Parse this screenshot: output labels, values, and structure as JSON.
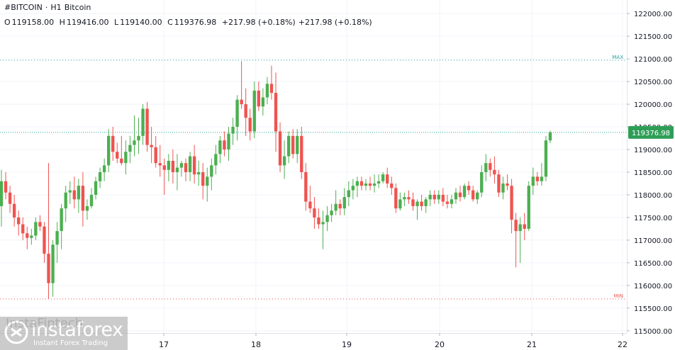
{
  "header": {
    "symbol": "#BITCOIN",
    "separator": "·",
    "interval": "H1",
    "name": "Bitcoin",
    "ohlc": {
      "o_label": "O",
      "o": "119158.00",
      "h_label": "H",
      "h": "119416.00",
      "l_label": "L",
      "l": "119140.00",
      "c_label": "C",
      "c": "119376.98",
      "change": "+217.98 (+0.18%)",
      "change2": "+217.98 (+0.18%)"
    }
  },
  "watermark": {
    "faint_text": "InstaFintech",
    "brand": "instaforex",
    "tagline": "Instant Forex Trading"
  },
  "colors": {
    "up": "#26a69a",
    "up_body": "#4caf50",
    "down": "#ef5350",
    "grid": "#f0f3fa",
    "axis_text": "#131722",
    "max_line": "#26a69a",
    "min_line": "#ef5350",
    "last_price_bg": "#2e9e57"
  },
  "chart_data": {
    "type": "candlestick",
    "y_axis": {
      "ticks": [
        "122000.00",
        "121500.00",
        "121000.00",
        "120500.00",
        "120000.00",
        "119500.00",
        "119000.00",
        "118500.00",
        "118000.00",
        "117500.00",
        "117000.00",
        "116500.00",
        "116000.00",
        "115500.00",
        "115000.00"
      ],
      "range": [
        114950,
        122300
      ]
    },
    "x_axis": {
      "ticks": [
        "17",
        "18",
        "19",
        "20",
        "21",
        "22"
      ]
    },
    "markers": {
      "max_label": "MAX",
      "max_value": 120970,
      "min_label": "MIN",
      "min_value": 115700
    },
    "last_price": {
      "label": "119376.98",
      "value": 119376.98
    },
    "candles": [
      [
        117750,
        118550,
        117300,
        118300
      ],
      [
        118300,
        118500,
        117900,
        118050
      ],
      [
        118050,
        118200,
        117600,
        117800
      ],
      [
        117800,
        118000,
        117300,
        117500
      ],
      [
        117500,
        117650,
        117100,
        117350
      ],
      [
        117350,
        117500,
        117000,
        117150
      ],
      [
        117150,
        117300,
        116800,
        117050
      ],
      [
        117050,
        117250,
        116900,
        117100
      ],
      [
        117100,
        117500,
        117000,
        117400
      ],
      [
        117400,
        117550,
        117200,
        117300
      ],
      [
        117300,
        117400,
        116500,
        116700
      ],
      [
        116700,
        118700,
        115700,
        116050
      ],
      [
        116050,
        117000,
        115750,
        116900
      ],
      [
        116900,
        117400,
        116500,
        117200
      ],
      [
        117200,
        117800,
        116800,
        117700
      ],
      [
        117700,
        118200,
        117400,
        118050
      ],
      [
        118050,
        118300,
        117800,
        118100
      ],
      [
        118100,
        118400,
        117700,
        117900
      ],
      [
        117900,
        118350,
        117600,
        118200
      ],
      [
        118200,
        118500,
        117300,
        117650
      ],
      [
        117650,
        117900,
        117450,
        117750
      ],
      [
        117750,
        118150,
        117700,
        118000
      ],
      [
        118000,
        118400,
        117900,
        118300
      ],
      [
        118300,
        118600,
        118150,
        118500
      ],
      [
        118500,
        118800,
        118300,
        118650
      ],
      [
        118650,
        119450,
        118500,
        119300
      ],
      [
        119300,
        119500,
        118750,
        118950
      ],
      [
        118950,
        119150,
        118700,
        118800
      ],
      [
        118800,
        119300,
        118650,
        118700
      ],
      [
        118700,
        119200,
        118450,
        118950
      ],
      [
        118950,
        119300,
        118700,
        119100
      ],
      [
        119100,
        119750,
        118850,
        119200
      ],
      [
        119200,
        119700,
        118900,
        119300
      ],
      [
        119300,
        120000,
        119100,
        119900
      ],
      [
        119900,
        120050,
        118950,
        119100
      ],
      [
        119100,
        119500,
        118700,
        119050
      ],
      [
        119050,
        119300,
        118600,
        118700
      ],
      [
        118700,
        119100,
        118400,
        118650
      ],
      [
        118650,
        118800,
        118000,
        118550
      ],
      [
        118550,
        118900,
        118300,
        118750
      ],
      [
        118750,
        119000,
        118250,
        118500
      ],
      [
        118500,
        118900,
        118100,
        118600
      ],
      [
        118600,
        118750,
        118400,
        118700
      ],
      [
        118700,
        118800,
        118300,
        118500
      ],
      [
        118500,
        118950,
        118300,
        118850
      ],
      [
        118850,
        119100,
        118250,
        118450
      ],
      [
        118450,
        118750,
        118200,
        118500
      ],
      [
        118500,
        118700,
        117900,
        118200
      ],
      [
        118200,
        118600,
        117850,
        118400
      ],
      [
        118400,
        118800,
        118100,
        118650
      ],
      [
        118650,
        119100,
        118450,
        118900
      ],
      [
        118900,
        119300,
        118700,
        119200
      ],
      [
        119200,
        119400,
        118850,
        119000
      ],
      [
        119000,
        119500,
        118750,
        119350
      ],
      [
        119350,
        119700,
        119100,
        119500
      ],
      [
        119500,
        120200,
        119200,
        120100
      ],
      [
        120100,
        120950,
        119900,
        120000
      ],
      [
        120000,
        120350,
        119300,
        119700
      ],
      [
        119700,
        119900,
        119200,
        119400
      ],
      [
        119400,
        120500,
        119250,
        120300
      ],
      [
        120300,
        120500,
        119850,
        119950
      ],
      [
        119950,
        120350,
        119750,
        120150
      ],
      [
        120150,
        120600,
        120000,
        120450
      ],
      [
        120450,
        120850,
        120100,
        120250
      ],
      [
        120250,
        120700,
        118950,
        119400
      ],
      [
        119400,
        119600,
        118500,
        118650
      ],
      [
        118650,
        119200,
        118350,
        118850
      ],
      [
        118850,
        119400,
        118700,
        119300
      ],
      [
        119300,
        119450,
        118800,
        118900
      ],
      [
        118900,
        119450,
        118700,
        119300
      ],
      [
        119300,
        119500,
        118350,
        118500
      ],
      [
        118500,
        118700,
        117650,
        117850
      ],
      [
        117850,
        118200,
        117600,
        117700
      ],
      [
        117700,
        117950,
        117250,
        117500
      ],
      [
        117500,
        117700,
        117250,
        117350
      ],
      [
        117350,
        117650,
        116800,
        117400
      ],
      [
        117400,
        117750,
        117200,
        117550
      ],
      [
        117550,
        117800,
        117400,
        117650
      ],
      [
        117650,
        118100,
        117550,
        117800
      ],
      [
        117800,
        117900,
        117550,
        117700
      ],
      [
        117700,
        118150,
        117550,
        117950
      ],
      [
        117950,
        118300,
        117750,
        118100
      ],
      [
        118100,
        118350,
        117900,
        118200
      ],
      [
        118200,
        118400,
        117950,
        118300
      ],
      [
        118300,
        118400,
        118100,
        118200
      ],
      [
        118200,
        118350,
        118100,
        118250
      ],
      [
        118250,
        118400,
        118100,
        118200
      ],
      [
        118200,
        118450,
        118050,
        118250
      ],
      [
        118250,
        118450,
        118150,
        118300
      ],
      [
        118300,
        118500,
        118250,
        118450
      ],
      [
        118450,
        118600,
        118150,
        118250
      ],
      [
        118250,
        118400,
        118000,
        118150
      ],
      [
        118150,
        118250,
        117600,
        117700
      ],
      [
        117700,
        118050,
        117650,
        117900
      ],
      [
        117900,
        118050,
        117750,
        117950
      ],
      [
        117950,
        118100,
        117800,
        117900
      ],
      [
        117900,
        118050,
        117650,
        117750
      ],
      [
        117750,
        117900,
        117450,
        117850
      ],
      [
        117850,
        118000,
        117650,
        117750
      ],
      [
        117750,
        117950,
        117600,
        117900
      ],
      [
        117900,
        118100,
        117750,
        118000
      ],
      [
        118000,
        118100,
        117800,
        117900
      ],
      [
        117900,
        118100,
        117800,
        118000
      ],
      [
        118000,
        118150,
        117750,
        117850
      ],
      [
        117850,
        118000,
        117700,
        117800
      ],
      [
        117800,
        118000,
        117700,
        117900
      ],
      [
        117900,
        118150,
        117800,
        118050
      ],
      [
        118050,
        118200,
        117850,
        117950
      ],
      [
        117950,
        118250,
        117900,
        118200
      ],
      [
        118200,
        118300,
        118000,
        118100
      ],
      [
        118100,
        118200,
        117850,
        117900
      ],
      [
        117900,
        118100,
        117800,
        118050
      ],
      [
        118050,
        118650,
        117950,
        118500
      ],
      [
        118500,
        118900,
        118300,
        118700
      ],
      [
        118700,
        118800,
        118400,
        118550
      ],
      [
        118550,
        118850,
        118250,
        118450
      ],
      [
        118450,
        118550,
        117950,
        118050
      ],
      [
        118050,
        118400,
        117900,
        118250
      ],
      [
        118250,
        118450,
        118100,
        118200
      ],
      [
        118200,
        118350,
        117150,
        117450
      ],
      [
        117450,
        117600,
        116400,
        117200
      ],
      [
        117200,
        117500,
        116500,
        117350
      ],
      [
        117350,
        117600,
        117000,
        117250
      ],
      [
        117250,
        118300,
        117200,
        118200
      ],
      [
        118200,
        118600,
        118000,
        118400
      ],
      [
        118400,
        118500,
        118200,
        118300
      ],
      [
        118300,
        118700,
        118200,
        118400
      ],
      [
        118400,
        119300,
        118300,
        119200
      ],
      [
        119200,
        119416,
        119140,
        119376.98
      ]
    ]
  }
}
